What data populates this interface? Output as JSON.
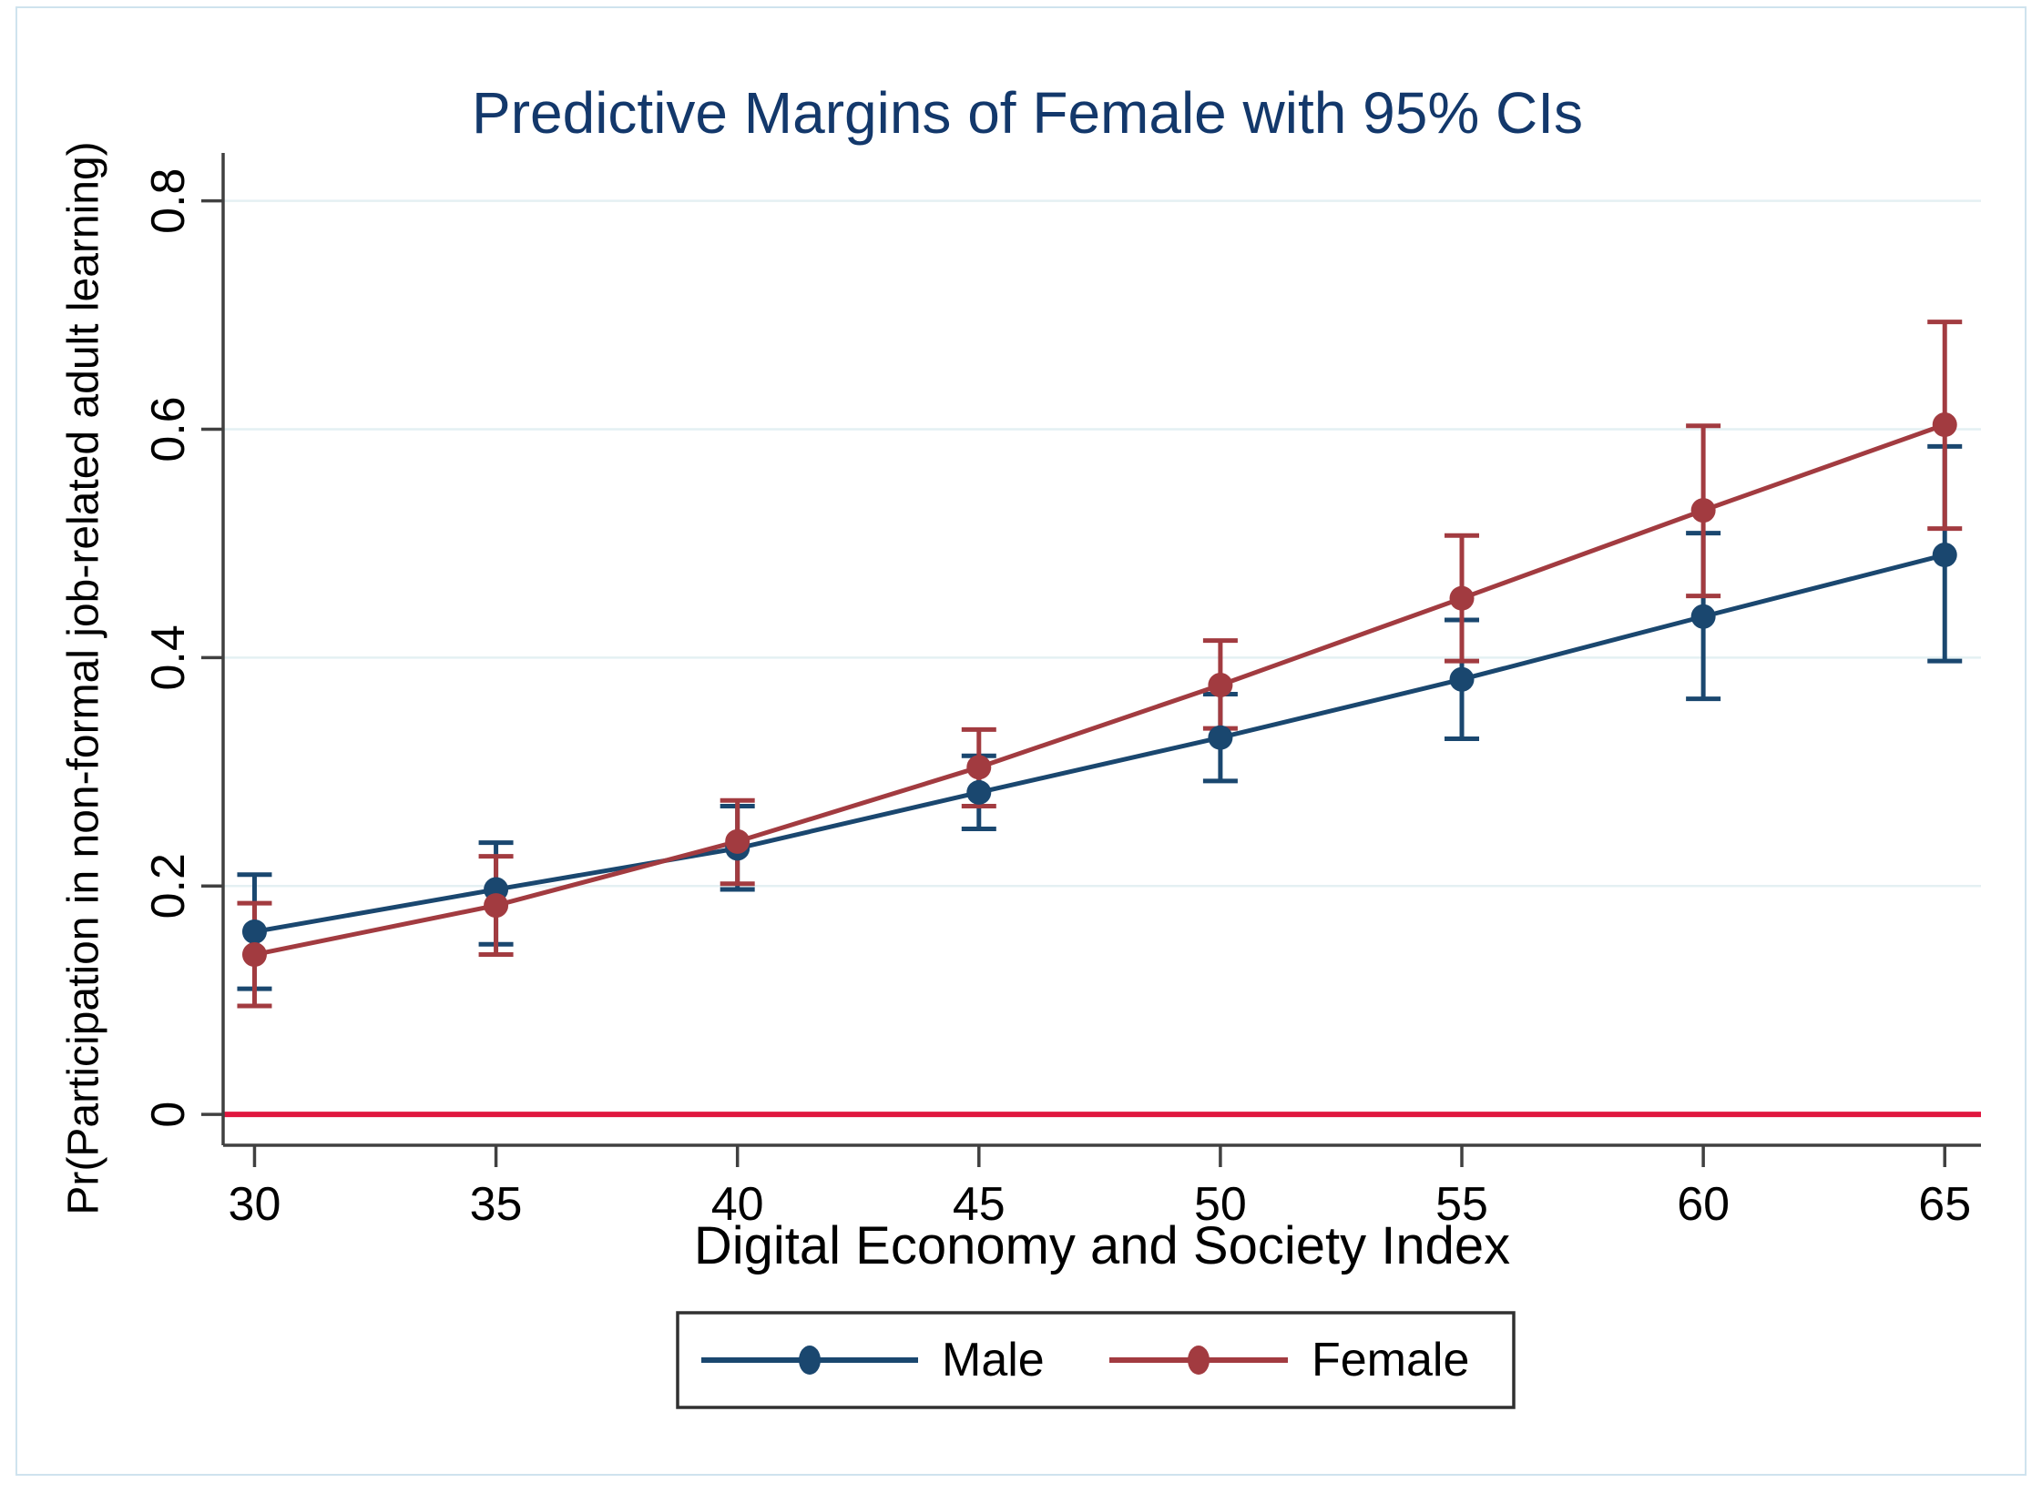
{
  "figure": {
    "title": "Predictive Margins of Female with 95% CIs"
  },
  "legend": {
    "position": "bottom-center",
    "items": [
      {
        "label": "Male"
      },
      {
        "label": "Female"
      }
    ]
  },
  "colors": {
    "male": "#1A476F",
    "female": "#A23B40",
    "zero_line": "#E0173F",
    "grid": "#E4F0F3",
    "axis": "#404040",
    "text": "#000000",
    "title": "#13386B",
    "figure_border": "#CFE3EE",
    "legend_border": "#303030"
  },
  "chart_data": {
    "type": "line",
    "title": "Predictive Margins of Female with 95% CIs",
    "xlabel": "Digital Economy and Society Index",
    "ylabel": "Pr(Participation in non-formal job-related adult learning)",
    "x": [
      30,
      35,
      40,
      45,
      50,
      55,
      60,
      65
    ],
    "x_tick_labels": [
      "30",
      "35",
      "40",
      "45",
      "50",
      "55",
      "60",
      "65"
    ],
    "y_tick_values": [
      0,
      0.2,
      0.4,
      0.6,
      0.8
    ],
    "y_tick_labels": [
      "0",
      "0.2",
      "0.4",
      "0.6",
      "0.8"
    ],
    "xlim": [
      29.35,
      65.75
    ],
    "ylim": [
      -0.027,
      0.842
    ],
    "grid": true,
    "grid_axis": "y",
    "error_bars": "95% confidence intervals",
    "reference_line": {
      "y": 0
    },
    "legend_position": "bottom-center",
    "series": [
      {
        "name": "Male",
        "marker": "circle",
        "values": [
          0.16,
          0.197,
          0.233,
          0.282,
          0.33,
          0.381,
          0.436,
          0.49
        ],
        "ci_lower": [
          0.11,
          0.149,
          0.197,
          0.25,
          0.292,
          0.329,
          0.364,
          0.397
        ],
        "ci_upper": [
          0.21,
          0.238,
          0.27,
          0.314,
          0.368,
          0.433,
          0.509,
          0.585
        ]
      },
      {
        "name": "Female",
        "marker": "circle",
        "values": [
          0.14,
          0.183,
          0.239,
          0.304,
          0.376,
          0.452,
          0.529,
          0.604
        ],
        "ci_lower": [
          0.095,
          0.14,
          0.202,
          0.27,
          0.338,
          0.397,
          0.454,
          0.513
        ],
        "ci_upper": [
          0.185,
          0.226,
          0.275,
          0.337,
          0.415,
          0.507,
          0.603,
          0.694
        ]
      }
    ]
  }
}
